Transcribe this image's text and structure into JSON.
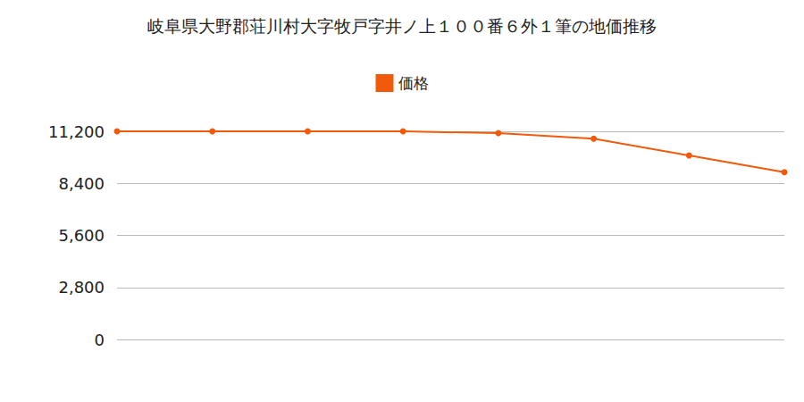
{
  "chart_data": {
    "type": "line",
    "title": "岐阜県大野郡荘川村大字牧戸字井ノ上１００番６外１筆の地価推移",
    "categories": [
      null,
      null,
      null,
      null,
      null,
      null,
      null,
      null
    ],
    "series": [
      {
        "name": "価格",
        "color": "#f05a0a",
        "marker": "circle",
        "values": [
          11200,
          11200,
          11200,
          11200,
          11100,
          10800,
          9900,
          9000
        ]
      }
    ],
    "ylim": [
      0,
      11200
    ],
    "yticks": [
      0,
      {
        "value": 2800,
        "label": "2,800"
      },
      {
        "value": 5600,
        "label": "5,600"
      },
      {
        "value": 8400,
        "label": "8,400"
      },
      {
        "value": 11200,
        "label": "11,200"
      }
    ],
    "grid": true,
    "legend": "top",
    "tick_labels": "y"
  }
}
